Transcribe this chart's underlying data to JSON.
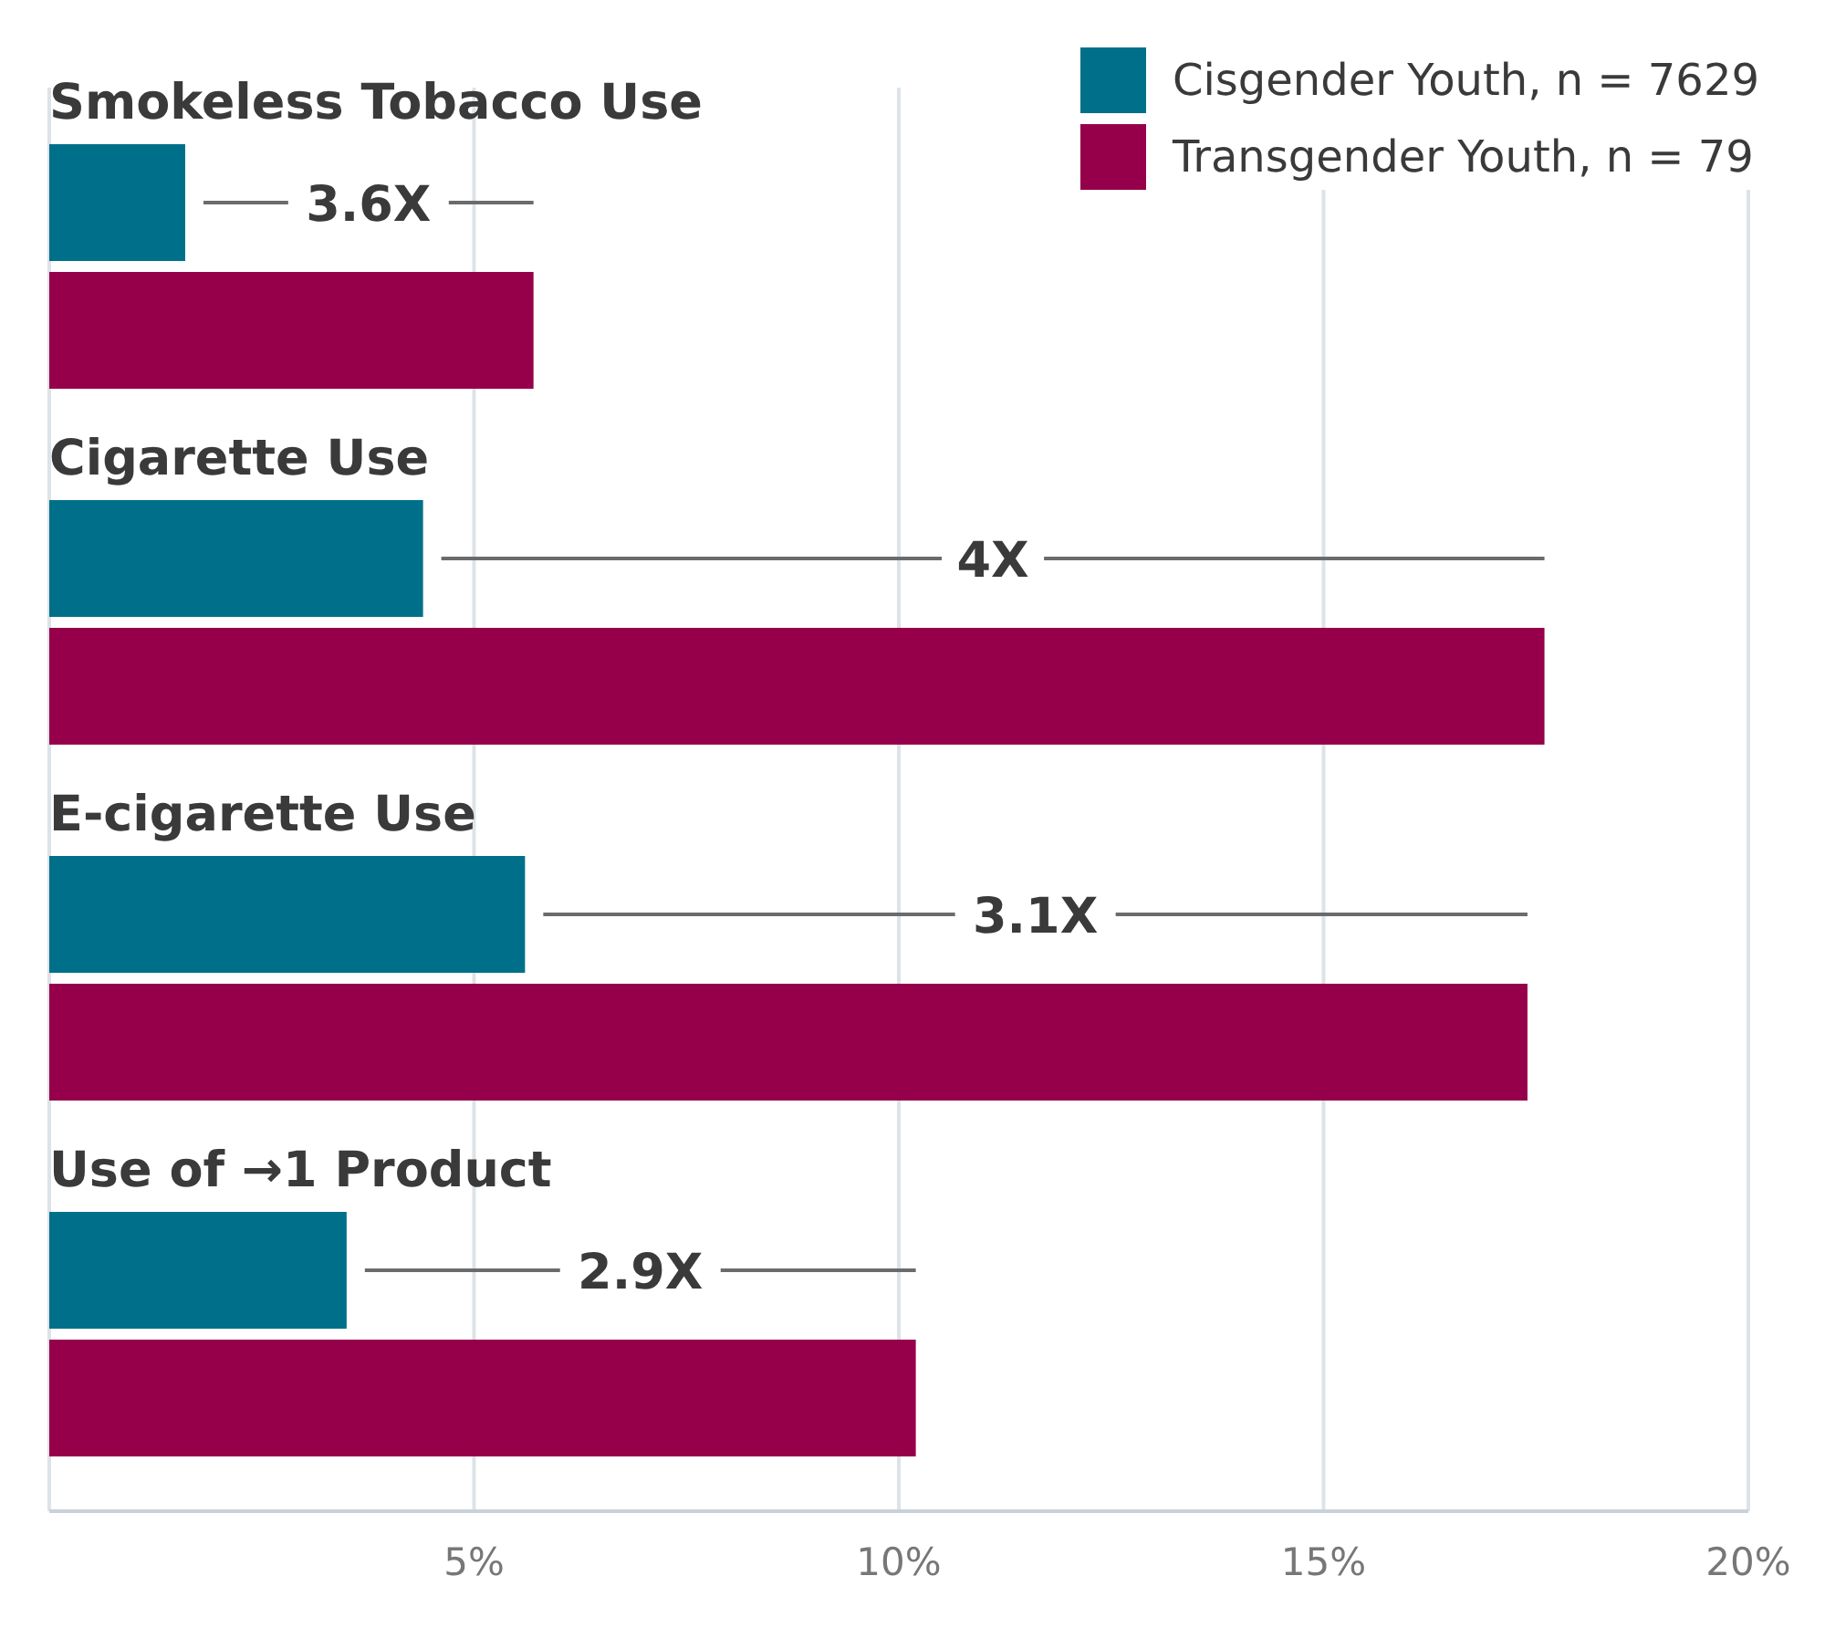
{
  "chart_data": {
    "type": "bar",
    "orientation": "horizontal",
    "categories": [
      "Smokeless Tobacco Use",
      "Cigarette Use",
      "E-cigarette Use",
      "Use of →1 Product"
    ],
    "series": [
      {
        "name": "Cisgender Youth, n = 7629",
        "color": "#00708a",
        "values": [
          1.6,
          4.4,
          5.6,
          3.5
        ]
      },
      {
        "name": "Transgender Youth, n = 79",
        "color": "#96004b",
        "values": [
          5.7,
          17.6,
          17.4,
          10.2
        ]
      }
    ],
    "xlim": [
      0,
      20
    ],
    "xticks": [
      {
        "value": 5,
        "label": "5%"
      },
      {
        "value": 10,
        "label": "10%"
      },
      {
        "value": 15,
        "label": "15%"
      },
      {
        "value": 20,
        "label": "20%"
      }
    ],
    "grid": "x",
    "legend": "top right",
    "annotations": [
      "3.6X",
      "4X",
      "3.1X",
      "2.9X"
    ]
  }
}
